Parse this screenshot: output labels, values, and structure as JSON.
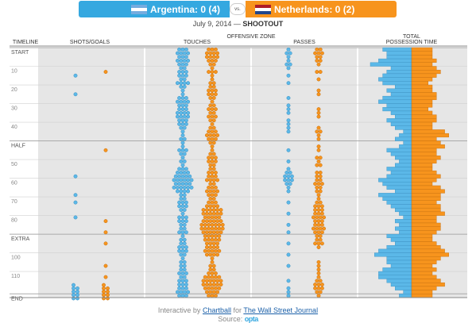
{
  "header": {
    "team_a": "Argentina: 0 (4)",
    "team_b": "Netherlands: 0 (2)",
    "vs": "vs."
  },
  "subtitle": {
    "date": "July 9, 2014 —",
    "stage": "SHOOTOUT"
  },
  "columns": {
    "timeline": "TIMELINE",
    "shots": "SHOTS/GOALS",
    "offensive_zone": "OFFENSIVE ZONE",
    "touches": "TOUCHES",
    "passes": "PASSES",
    "possession_1": "TOTAL",
    "possession_2": "POSSESSION TIME"
  },
  "footer": {
    "interactive_by": "Interactive by",
    "chartball": "Chartball",
    "for": "for",
    "wsj": "The Wall Street Journal",
    "source": "Source:",
    "opta": "opta"
  },
  "colors": {
    "argentina": "#5bb8e8",
    "netherlands": "#f7941d",
    "band": "#e6e6e6"
  },
  "chart_data": {
    "type": "table",
    "timeline_labels": [
      "START",
      "10",
      "20",
      "30",
      "40",
      "HALF",
      "50",
      "60",
      "70",
      "80",
      "EXTRA",
      "100",
      "110",
      "END"
    ],
    "timeline_rows": [
      0,
      5,
      10,
      15,
      20,
      25,
      30,
      35,
      40,
      45,
      50,
      55,
      60,
      66
    ],
    "total_rows": 67,
    "shots": {
      "argentina": [
        [
          7,
          1
        ],
        [
          12,
          1
        ],
        [
          34,
          1
        ],
        [
          39,
          1
        ],
        [
          41,
          1
        ],
        [
          45,
          1
        ],
        [
          65,
          9
        ]
      ],
      "netherlands": [
        [
          6,
          1
        ],
        [
          27,
          1
        ],
        [
          46,
          1
        ],
        [
          49,
          1
        ],
        [
          52,
          1
        ],
        [
          58,
          1
        ],
        [
          61,
          1
        ],
        [
          65,
          9
        ]
      ]
    },
    "touches": {
      "argentina": [
        3,
        4,
        3,
        4,
        3,
        2,
        3,
        3,
        2,
        4,
        2,
        1,
        1,
        3,
        4,
        3,
        3,
        4,
        4,
        3,
        3,
        2,
        1,
        1,
        2,
        1,
        1,
        3,
        2,
        1,
        2,
        1,
        3,
        4,
        5,
        6,
        5,
        6,
        4,
        2,
        2,
        3,
        3,
        2,
        1,
        3,
        3,
        2,
        2,
        3,
        1,
        2,
        2,
        3,
        3,
        2,
        1,
        2,
        2,
        2,
        3,
        2,
        3,
        3,
        3,
        4,
        3
      ],
      "netherlands": [
        3,
        4,
        4,
        3,
        2,
        1,
        3,
        1,
        1,
        2,
        2,
        3,
        3,
        2,
        1,
        2,
        3,
        2,
        3,
        2,
        1,
        2,
        3,
        4,
        3,
        2,
        1,
        1,
        2,
        3,
        3,
        2,
        2,
        3,
        3,
        4,
        2,
        3,
        4,
        3,
        2,
        3,
        4,
        6,
        6,
        5,
        6,
        7,
        7,
        6,
        5,
        5,
        4,
        4,
        5,
        4,
        1,
        1,
        2,
        2,
        3,
        5,
        6,
        6,
        5,
        4,
        3
      ],
      "max": 7
    },
    "passes": {
      "argentina": [
        1,
        2,
        1,
        1,
        2,
        1,
        0,
        1,
        0,
        1,
        0,
        0,
        0,
        1,
        0,
        1,
        1,
        1,
        0,
        1,
        1,
        1,
        1,
        0,
        0,
        0,
        0,
        1,
        0,
        0,
        1,
        0,
        1,
        2,
        3,
        3,
        2,
        1,
        1,
        0,
        0,
        1,
        0,
        0,
        1,
        0,
        0,
        1,
        0,
        1,
        0,
        0,
        1,
        0,
        0,
        1,
        0,
        0,
        1,
        0,
        0,
        0,
        1,
        0,
        1,
        1,
        1
      ],
      "netherlands": [
        2,
        3,
        2,
        2,
        1,
        0,
        2,
        0,
        1,
        0,
        0,
        1,
        1,
        0,
        0,
        0,
        1,
        1,
        1,
        0,
        0,
        1,
        2,
        1,
        1,
        0,
        1,
        1,
        0,
        2,
        1,
        2,
        0,
        2,
        2,
        2,
        3,
        2,
        2,
        1,
        1,
        2,
        3,
        3,
        3,
        4,
        3,
        3,
        4,
        3,
        2,
        2,
        3,
        1,
        0,
        0,
        0,
        1,
        1,
        1,
        1,
        1,
        2,
        3,
        3,
        2,
        1
      ],
      "max": 4
    },
    "possession": {
      "argentina": [
        7,
        6,
        6,
        8,
        10,
        5,
        6,
        7,
        8,
        7,
        4,
        6,
        5,
        7,
        8,
        6,
        7,
        5,
        4,
        6,
        5,
        4,
        2,
        3,
        4,
        2,
        3,
        6,
        5,
        4,
        3,
        4,
        6,
        5,
        6,
        8,
        7,
        6,
        4,
        8,
        7,
        6,
        5,
        4,
        3,
        2,
        4,
        3,
        4,
        3,
        6,
        5,
        4,
        6,
        8,
        9,
        6,
        6,
        5,
        7,
        8,
        8,
        6,
        5,
        4,
        2,
        3
      ],
      "netherlands": [
        5,
        5,
        5,
        6,
        5,
        6,
        7,
        6,
        5,
        4,
        5,
        5,
        6,
        6,
        5,
        5,
        4,
        5,
        6,
        6,
        5,
        5,
        8,
        9,
        6,
        7,
        8,
        6,
        6,
        7,
        6,
        5,
        5,
        6,
        7,
        6,
        5,
        7,
        8,
        7,
        7,
        6,
        7,
        7,
        8,
        6,
        6,
        7,
        7,
        6,
        5,
        5,
        6,
        7,
        8,
        9,
        7,
        6,
        5,
        6,
        5,
        6,
        7,
        8,
        6,
        5,
        5
      ],
      "max": 10
    }
  }
}
